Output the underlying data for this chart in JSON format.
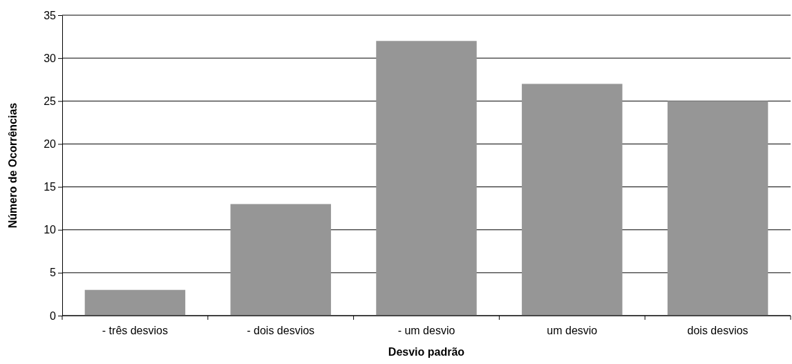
{
  "chart_data": {
    "type": "bar",
    "xlabel": "Desvio padrão",
    "ylabel": "Número de Ocorrências",
    "categories": [
      "- três desvios",
      "- dois desvios",
      "- um desvio",
      "um desvio",
      "dois desvios"
    ],
    "values": [
      3,
      13,
      32,
      27,
      25
    ],
    "color": "#969696",
    "ylim": [
      0,
      35
    ],
    "yticks": [
      0,
      5,
      10,
      15,
      20,
      25,
      30,
      35
    ],
    "grid": "y"
  }
}
